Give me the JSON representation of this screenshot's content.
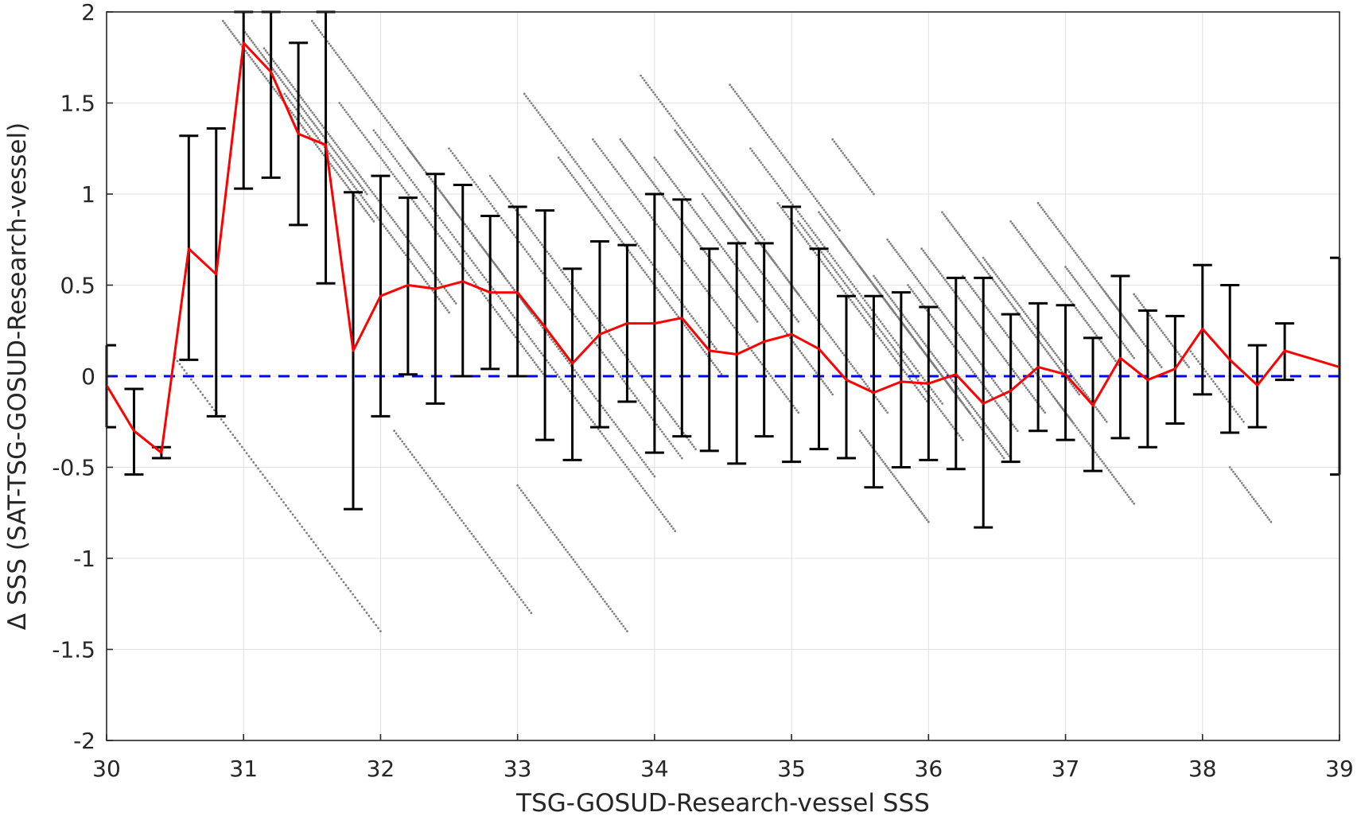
{
  "chart_data": {
    "type": "scatter",
    "xlabel": "TSG-GOSUD-Research-vessel SSS",
    "ylabel": "Δ SSS (SAT-TSG-GOSUD-Research-vessel)",
    "xlim": [
      30,
      39
    ],
    "ylim": [
      -2,
      2
    ],
    "xticks": [
      30,
      31,
      32,
      33,
      34,
      35,
      36,
      37,
      38,
      39
    ],
    "yticks": [
      -2,
      -1.5,
      -1,
      -0.5,
      0,
      0.5,
      1,
      1.5,
      2
    ],
    "grid": true,
    "legend": "none",
    "colors": {
      "scatter": "#7f7f7f",
      "mean_line": "#ff0000",
      "error_bars": "#000000",
      "zero_line": "#0000ff",
      "grid": "#e0e0e0"
    },
    "series": [
      {
        "kind": "binned_mean_with_std",
        "x": [
          30.0,
          30.2,
          30.4,
          30.6,
          30.8,
          31.0,
          31.2,
          31.4,
          31.6,
          31.8,
          32.0,
          32.2,
          32.4,
          32.6,
          32.8,
          33.0,
          33.2,
          33.4,
          33.6,
          33.8,
          34.0,
          34.2,
          34.4,
          34.6,
          34.8,
          35.0,
          35.2,
          35.4,
          35.6,
          35.8,
          36.0,
          36.2,
          36.4,
          36.6,
          36.8,
          37.0,
          37.2,
          37.4,
          37.6,
          37.8,
          38.0,
          38.2,
          38.4,
          38.6,
          39.0
        ],
        "mean": [
          -0.05,
          -0.3,
          -0.42,
          0.7,
          0.56,
          1.83,
          1.67,
          1.33,
          1.27,
          0.14,
          0.44,
          0.5,
          0.48,
          0.52,
          0.46,
          0.46,
          0.27,
          0.07,
          0.23,
          0.29,
          0.29,
          0.32,
          0.14,
          0.12,
          0.19,
          0.23,
          0.15,
          -0.02,
          -0.09,
          -0.03,
          -0.04,
          0.01,
          -0.15,
          -0.08,
          0.05,
          0.01,
          -0.16,
          0.1,
          -0.02,
          0.04,
          0.26,
          0.09,
          -0.05,
          0.14,
          0.05
        ],
        "upper": [
          0.17,
          -0.07,
          -0.39,
          1.32,
          1.36,
          2.0,
          2.0,
          1.83,
          2.0,
          1.01,
          1.1,
          0.98,
          1.11,
          1.05,
          0.88,
          0.93,
          0.91,
          0.59,
          0.74,
          0.72,
          1.0,
          0.97,
          0.7,
          0.73,
          0.73,
          0.93,
          0.7,
          0.44,
          0.44,
          0.46,
          0.38,
          0.54,
          0.54,
          0.34,
          0.4,
          0.39,
          0.21,
          0.55,
          0.36,
          0.33,
          0.61,
          0.5,
          0.17,
          0.29,
          0.65
        ],
        "lower": [
          -0.28,
          -0.54,
          -0.45,
          0.09,
          -0.22,
          1.03,
          1.09,
          0.83,
          0.51,
          -0.73,
          -0.22,
          0.01,
          -0.15,
          0.0,
          0.04,
          0.0,
          -0.35,
          -0.46,
          -0.28,
          -0.14,
          -0.42,
          -0.33,
          -0.41,
          -0.48,
          -0.33,
          -0.47,
          -0.4,
          -0.45,
          -0.61,
          -0.5,
          -0.46,
          -0.51,
          -0.83,
          -0.47,
          -0.3,
          -0.35,
          -0.52,
          -0.34,
          -0.39,
          -0.26,
          -0.1,
          -0.31,
          -0.28,
          -0.02,
          -0.54
        ]
      },
      {
        "kind": "reference_line",
        "y": 0
      }
    ],
    "scatter_segments": [
      {
        "x": 30.85,
        "y": 1.95,
        "dx": 1.1,
        "dy": -1.1,
        "n": 95
      },
      {
        "x": 31.0,
        "y": 1.9,
        "dx": 0.9,
        "dy": -0.9,
        "n": 80
      },
      {
        "x": 31.15,
        "y": 1.8,
        "dx": 1.4,
        "dy": -1.4,
        "n": 120
      },
      {
        "x": 31.3,
        "y": 1.55,
        "dx": 1.2,
        "dy": -1.2,
        "n": 100
      },
      {
        "x": 31.5,
        "y": 1.95,
        "dx": 1.6,
        "dy": -1.6,
        "n": 130
      },
      {
        "x": 31.7,
        "y": 1.5,
        "dx": 1.5,
        "dy": -1.5,
        "n": 120
      },
      {
        "x": 31.95,
        "y": 1.35,
        "dx": 2.2,
        "dy": -2.2,
        "n": 170
      },
      {
        "x": 32.2,
        "y": 1.25,
        "dx": 1.8,
        "dy": -1.8,
        "n": 140
      },
      {
        "x": 32.5,
        "y": 1.25,
        "dx": 1.7,
        "dy": -1.7,
        "n": 130
      },
      {
        "x": 32.8,
        "y": 1.1,
        "dx": 1.5,
        "dy": -1.5,
        "n": 120
      },
      {
        "x": 33.05,
        "y": 1.55,
        "dx": 1.4,
        "dy": -1.4,
        "n": 110
      },
      {
        "x": 33.3,
        "y": 1.2,
        "dx": 1.2,
        "dy": -1.2,
        "n": 100
      },
      {
        "x": 33.55,
        "y": 1.3,
        "dx": 1.5,
        "dy": -1.5,
        "n": 120
      },
      {
        "x": 33.75,
        "y": 1.3,
        "dx": 1.0,
        "dy": -1.0,
        "n": 90
      },
      {
        "x": 34.0,
        "y": 1.2,
        "dx": 1.3,
        "dy": -1.3,
        "n": 110
      },
      {
        "x": 34.15,
        "y": 1.35,
        "dx": 0.9,
        "dy": -0.9,
        "n": 80
      },
      {
        "x": 34.35,
        "y": 1.0,
        "dx": 0.7,
        "dy": -0.7,
        "n": 60
      },
      {
        "x": 34.5,
        "y": 1.0,
        "dx": 1.2,
        "dy": -1.2,
        "n": 100
      },
      {
        "x": 34.7,
        "y": 1.25,
        "dx": 1.4,
        "dy": -1.4,
        "n": 110
      },
      {
        "x": 34.9,
        "y": 0.95,
        "dx": 1.1,
        "dy": -1.1,
        "n": 90
      },
      {
        "x": 35.05,
        "y": 0.85,
        "dx": 1.2,
        "dy": -1.2,
        "n": 100
      },
      {
        "x": 35.2,
        "y": 0.9,
        "dx": 1.0,
        "dy": -1.0,
        "n": 90
      },
      {
        "x": 35.35,
        "y": 0.75,
        "dx": 1.2,
        "dy": -1.2,
        "n": 100
      },
      {
        "x": 35.5,
        "y": 0.6,
        "dx": 0.8,
        "dy": -0.8,
        "n": 80
      },
      {
        "x": 35.6,
        "y": 0.55,
        "dx": 1.0,
        "dy": -1.0,
        "n": 90
      },
      {
        "x": 35.7,
        "y": 0.75,
        "dx": 0.9,
        "dy": -0.9,
        "n": 80
      },
      {
        "x": 35.85,
        "y": 0.5,
        "dx": 0.8,
        "dy": -0.8,
        "n": 70
      },
      {
        "x": 35.95,
        "y": 0.7,
        "dx": 0.9,
        "dy": -0.9,
        "n": 80
      },
      {
        "x": 36.1,
        "y": 0.9,
        "dx": 1.0,
        "dy": -1.0,
        "n": 90
      },
      {
        "x": 36.25,
        "y": 0.55,
        "dx": 0.8,
        "dy": -0.8,
        "n": 70
      },
      {
        "x": 36.4,
        "y": 0.65,
        "dx": 0.9,
        "dy": -0.9,
        "n": 80
      },
      {
        "x": 36.6,
        "y": 0.85,
        "dx": 0.8,
        "dy": -0.8,
        "n": 70
      },
      {
        "x": 36.8,
        "y": 0.95,
        "dx": 0.7,
        "dy": -0.7,
        "n": 60
      },
      {
        "x": 37.0,
        "y": 0.6,
        "dx": 0.5,
        "dy": -0.5,
        "n": 45
      },
      {
        "x": 37.25,
        "y": 0.5,
        "dx": 0.45,
        "dy": -0.45,
        "n": 40
      },
      {
        "x": 37.5,
        "y": 0.45,
        "dx": 0.4,
        "dy": -0.4,
        "n": 35
      },
      {
        "x": 37.9,
        "y": 0.15,
        "dx": 0.4,
        "dy": -0.4,
        "n": 30
      },
      {
        "x": 38.2,
        "y": -0.5,
        "dx": 0.3,
        "dy": -0.3,
        "n": 25
      },
      {
        "x": 33.9,
        "y": 1.65,
        "dx": 0.9,
        "dy": -0.9,
        "n": 70
      },
      {
        "x": 34.55,
        "y": 1.6,
        "dx": 0.8,
        "dy": -0.8,
        "n": 65
      },
      {
        "x": 35.3,
        "y": 1.3,
        "dx": 0.3,
        "dy": -0.3,
        "n": 25
      },
      {
        "x": 30.5,
        "y": 0.1,
        "dx": 1.5,
        "dy": -1.5,
        "n": 90
      },
      {
        "x": 32.1,
        "y": -0.3,
        "dx": 1.0,
        "dy": -1.0,
        "n": 70
      },
      {
        "x": 33.0,
        "y": -0.6,
        "dx": 0.8,
        "dy": -0.8,
        "n": 60
      },
      {
        "x": 35.5,
        "y": -0.3,
        "dx": 0.5,
        "dy": -0.5,
        "n": 45
      },
      {
        "x": 36.9,
        "y": -0.1,
        "dx": 0.6,
        "dy": -0.6,
        "n": 50
      }
    ]
  }
}
